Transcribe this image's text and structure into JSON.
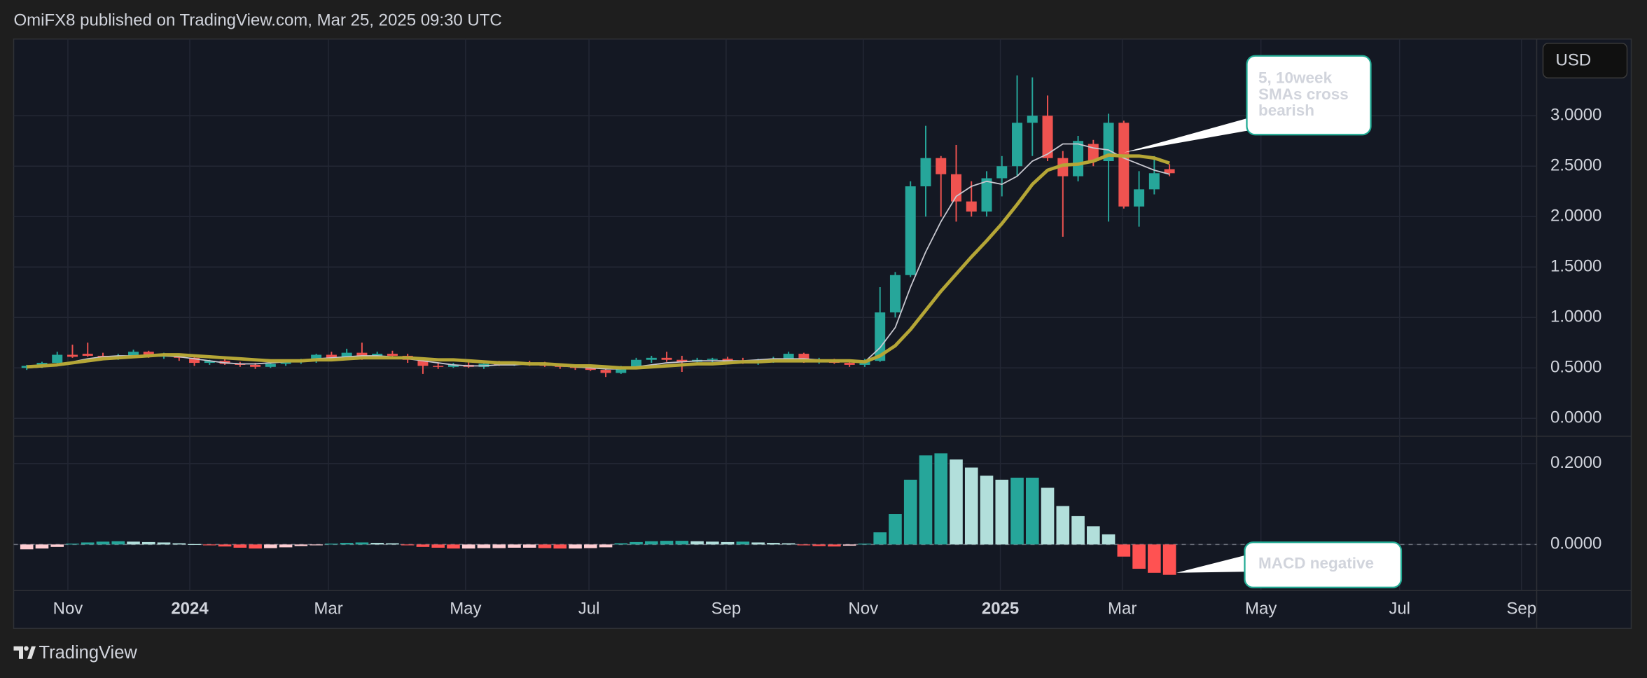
{
  "header": "OmiFX8 published on TradingView.com, Mar 25, 2025 09:30 UTC",
  "footer": "TradingView",
  "currency": "USD",
  "chart_data": [
    {
      "type": "candlestick",
      "up_color": "#26a69a",
      "down_color": "#ef5350",
      "open": [
        0.5,
        0.52,
        0.55,
        0.63,
        0.64,
        0.62,
        0.6,
        0.62,
        0.66,
        0.61,
        0.63,
        0.6,
        0.55,
        0.57,
        0.54,
        0.53,
        0.51,
        0.54,
        0.56,
        0.57,
        0.63,
        0.6,
        0.65,
        0.62,
        0.64,
        0.62,
        0.58,
        0.52,
        0.51,
        0.53,
        0.51,
        0.54,
        0.53,
        0.55,
        0.54,
        0.52,
        0.51,
        0.5,
        0.48,
        0.45,
        0.51,
        0.58,
        0.6,
        0.58,
        0.56,
        0.58,
        0.59,
        0.57,
        0.55,
        0.57,
        0.59,
        0.64,
        0.57,
        0.58,
        0.55,
        0.53,
        0.57,
        1.05,
        1.42,
        2.3,
        2.58,
        2.42,
        2.15,
        2.05,
        2.38,
        2.5,
        2.93,
        3.0,
        2.58,
        2.4,
        2.72,
        2.55,
        2.93,
        2.1,
        2.27,
        2.47
      ],
      "high": [
        0.53,
        0.56,
        0.66,
        0.73,
        0.75,
        0.65,
        0.64,
        0.68,
        0.67,
        0.65,
        0.64,
        0.62,
        0.58,
        0.59,
        0.56,
        0.55,
        0.56,
        0.57,
        0.59,
        0.64,
        0.66,
        0.69,
        0.75,
        0.66,
        0.67,
        0.64,
        0.6,
        0.55,
        0.55,
        0.56,
        0.55,
        0.57,
        0.56,
        0.57,
        0.56,
        0.54,
        0.53,
        0.52,
        0.5,
        0.52,
        0.6,
        0.62,
        0.66,
        0.62,
        0.6,
        0.6,
        0.61,
        0.6,
        0.59,
        0.61,
        0.66,
        0.65,
        0.6,
        0.59,
        0.57,
        0.59,
        1.3,
        1.45,
        2.35,
        2.9,
        2.6,
        2.71,
        2.35,
        2.45,
        2.6,
        3.4,
        3.38,
        3.2,
        2.65,
        2.8,
        2.76,
        3.02,
        2.95,
        2.45,
        2.6,
        2.52
      ],
      "low": [
        0.48,
        0.5,
        0.54,
        0.6,
        0.61,
        0.58,
        0.58,
        0.6,
        0.6,
        0.59,
        0.57,
        0.52,
        0.53,
        0.53,
        0.51,
        0.49,
        0.5,
        0.52,
        0.54,
        0.55,
        0.59,
        0.58,
        0.58,
        0.6,
        0.61,
        0.55,
        0.44,
        0.49,
        0.5,
        0.5,
        0.49,
        0.52,
        0.52,
        0.52,
        0.51,
        0.49,
        0.48,
        0.47,
        0.41,
        0.44,
        0.5,
        0.55,
        0.56,
        0.46,
        0.54,
        0.55,
        0.55,
        0.54,
        0.53,
        0.55,
        0.57,
        0.55,
        0.54,
        0.54,
        0.51,
        0.51,
        0.56,
        1.0,
        1.4,
        2.0,
        2.0,
        1.95,
        2.0,
        2.0,
        2.2,
        2.4,
        2.6,
        2.55,
        1.8,
        2.35,
        2.5,
        1.95,
        2.08,
        1.9,
        2.22,
        2.4
      ],
      "close": [
        0.52,
        0.55,
        0.63,
        0.61,
        0.62,
        0.6,
        0.62,
        0.66,
        0.61,
        0.63,
        0.6,
        0.55,
        0.57,
        0.54,
        0.53,
        0.51,
        0.54,
        0.56,
        0.57,
        0.63,
        0.6,
        0.65,
        0.62,
        0.64,
        0.62,
        0.58,
        0.52,
        0.51,
        0.53,
        0.51,
        0.54,
        0.53,
        0.55,
        0.54,
        0.52,
        0.51,
        0.5,
        0.48,
        0.45,
        0.51,
        0.58,
        0.6,
        0.58,
        0.56,
        0.58,
        0.59,
        0.57,
        0.55,
        0.57,
        0.59,
        0.64,
        0.57,
        0.58,
        0.55,
        0.53,
        0.57,
        1.05,
        1.42,
        2.3,
        2.58,
        2.42,
        2.15,
        2.05,
        2.38,
        2.5,
        2.93,
        3.0,
        2.58,
        2.4,
        2.75,
        2.55,
        2.93,
        2.1,
        2.27,
        2.43,
        2.43
      ],
      "series": [
        {
          "color": "#c8c8d0",
          "values": [
            0.5,
            0.51,
            0.53,
            0.56,
            0.59,
            0.61,
            0.62,
            0.62,
            0.62,
            0.62,
            0.61,
            0.59,
            0.57,
            0.55,
            0.54,
            0.54,
            0.55,
            0.56,
            0.57,
            0.59,
            0.6,
            0.61,
            0.62,
            0.62,
            0.61,
            0.59,
            0.57,
            0.55,
            0.53,
            0.52,
            0.52,
            0.53,
            0.53,
            0.54,
            0.53,
            0.52,
            0.51,
            0.5,
            0.49,
            0.49,
            0.51,
            0.53,
            0.55,
            0.56,
            0.57,
            0.57,
            0.57,
            0.57,
            0.58,
            0.59,
            0.59,
            0.59,
            0.58,
            0.57,
            0.56,
            0.56,
            0.7,
            0.9,
            1.3,
            1.65,
            1.95,
            2.2,
            2.3,
            2.35,
            2.32,
            2.4,
            2.55,
            2.62,
            2.72,
            2.72,
            2.68,
            2.66,
            2.58,
            2.52,
            2.46,
            2.42
          ]
        },
        {
          "color": "#b5a636",
          "values": [
            0.51,
            0.52,
            0.53,
            0.55,
            0.57,
            0.59,
            0.6,
            0.61,
            0.62,
            0.63,
            0.63,
            0.62,
            0.61,
            0.6,
            0.59,
            0.58,
            0.57,
            0.57,
            0.57,
            0.58,
            0.58,
            0.59,
            0.6,
            0.6,
            0.6,
            0.6,
            0.59,
            0.58,
            0.58,
            0.57,
            0.56,
            0.55,
            0.55,
            0.54,
            0.54,
            0.53,
            0.52,
            0.52,
            0.51,
            0.5,
            0.5,
            0.51,
            0.52,
            0.53,
            0.54,
            0.54,
            0.55,
            0.56,
            0.56,
            0.57,
            0.57,
            0.57,
            0.57,
            0.57,
            0.57,
            0.56,
            0.62,
            0.72,
            0.88,
            1.07,
            1.26,
            1.43,
            1.6,
            1.76,
            1.93,
            2.12,
            2.32,
            2.46,
            2.51,
            2.52,
            2.55,
            2.61,
            2.6,
            2.6,
            2.58,
            2.53
          ]
        }
      ],
      "xlim": [
        -0.86,
        99.1
      ],
      "ylim": [
        -0.177,
        3.76
      ],
      "yticks": [
        {
          "value": 0,
          "label": "0.0000"
        },
        {
          "value": 0.5,
          "label": "0.5000"
        },
        {
          "value": 1,
          "label": "1.0000"
        },
        {
          "value": 1.5,
          "label": "1.5000"
        },
        {
          "value": 2,
          "label": "2.0000"
        },
        {
          "value": 2.5,
          "label": "2.5000"
        },
        {
          "value": 3,
          "label": "3.0000"
        }
      ],
      "grid": true,
      "annotation": [
        "5, 10week",
        "SMAs cross",
        "bearish"
      ]
    },
    {
      "type": "bar",
      "palette": [
        "#26a69a",
        "#b2dfdb",
        "#ffcdd2",
        "#ff5252"
      ],
      "values": [
        -0.012,
        -0.01,
        -0.006,
        0.002,
        0.005,
        0.007,
        0.008,
        0.007,
        0.006,
        0.005,
        0.003,
        0.001,
        -0.002,
        -0.005,
        -0.008,
        -0.01,
        -0.009,
        -0.007,
        -0.004,
        -0.002,
        0.002,
        0.004,
        0.005,
        0.004,
        0.003,
        -0.002,
        -0.006,
        -0.008,
        -0.01,
        -0.01,
        -0.009,
        -0.009,
        -0.008,
        -0.008,
        -0.009,
        -0.01,
        -0.01,
        -0.009,
        -0.007,
        0.003,
        0.006,
        0.008,
        0.009,
        0.009,
        0.008,
        0.007,
        0.006,
        0.007,
        0.005,
        0.004,
        0.003,
        -0.002,
        -0.004,
        -0.005,
        -0.003,
        0.002,
        0.03,
        0.075,
        0.16,
        0.22,
        0.225,
        0.21,
        0.19,
        0.17,
        0.16,
        0.165,
        0.165,
        0.14,
        0.095,
        0.07,
        0.045,
        0.025,
        -0.03,
        -0.06,
        -0.07,
        -0.075
      ],
      "xlim": [
        -0.86,
        99.1
      ],
      "xticks": [
        {
          "value": 2.7,
          "label": "Nov"
        },
        {
          "value": 10.7,
          "label": "2024"
        },
        {
          "value": 19.8,
          "label": "Mar"
        },
        {
          "value": 28.8,
          "label": "May"
        },
        {
          "value": 36.9,
          "label": "Jul"
        },
        {
          "value": 45.9,
          "label": "Sep"
        },
        {
          "value": 54.9,
          "label": "Nov"
        },
        {
          "value": 63.9,
          "label": "2025"
        },
        {
          "value": 71.9,
          "label": "Mar"
        },
        {
          "value": 81.0,
          "label": "May"
        },
        {
          "value": 90.1,
          "label": "Jul"
        },
        {
          "value": 98.1,
          "label": "Sep"
        }
      ],
      "ylim": [
        -0.114,
        0.2675
      ],
      "yticks": [
        {
          "value": 0,
          "label": "0.0000"
        },
        {
          "value": 0.2,
          "label": "0.2000"
        }
      ],
      "grid": true,
      "annotation": "MACD negative"
    }
  ]
}
